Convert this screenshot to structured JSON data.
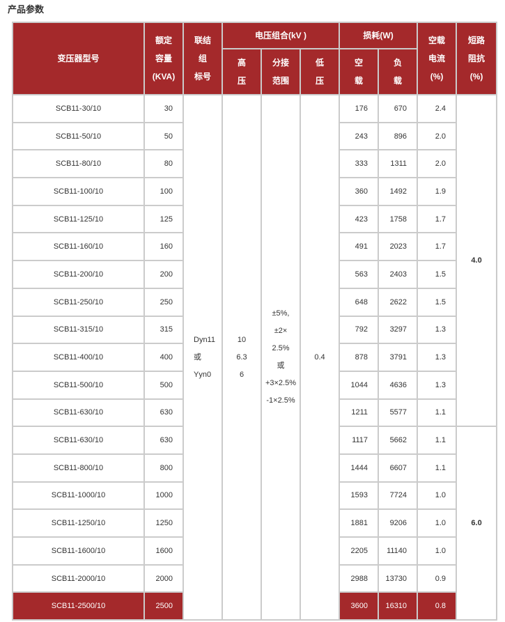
{
  "page_title": "产品参数",
  "colors": {
    "header_bg": "#a4292b",
    "border": "#cbcbcb",
    "highlight_bg": "#a4292b"
  },
  "headers": {
    "model": "变压器型号",
    "capacity": [
      "额定",
      "容量",
      "(KVA)"
    ],
    "wiring": [
      "联结",
      "组",
      "标号"
    ],
    "voltage": "电压组合(kV )",
    "hv": [
      "高",
      "压"
    ],
    "tap": [
      "分接",
      "范围"
    ],
    "lv": [
      "低",
      "压"
    ],
    "loss": "损耗(W)",
    "noload": [
      "空",
      "载"
    ],
    "load": [
      "负",
      "载"
    ],
    "current": [
      "空载",
      "电流",
      "(%)"
    ],
    "impedance": [
      "短路",
      "阻抗",
      "(%)"
    ]
  },
  "merged": {
    "wiring": [
      "Dyn11",
      "或",
      "Yyn0"
    ],
    "hv": [
      "10",
      "6.3",
      "6"
    ],
    "tap": [
      "±5%,",
      "±2×",
      "2.5%",
      "或",
      "+3×2.5%",
      "-1×2.5%"
    ],
    "lv": "0.4",
    "impedance_a": "4.0",
    "impedance_b": "6.0"
  },
  "rows": [
    {
      "model": "SCB11-30/10",
      "capacity": "30",
      "noload": "176",
      "load": "670",
      "current": "2.4"
    },
    {
      "model": "SCB11-50/10",
      "capacity": "50",
      "noload": "243",
      "load": "896",
      "current": "2.0"
    },
    {
      "model": "SCB11-80/10",
      "capacity": "80",
      "noload": "333",
      "load": "1311",
      "current": "2.0"
    },
    {
      "model": "SCB11-100/10",
      "capacity": "100",
      "noload": "360",
      "load": "1492",
      "current": "1.9"
    },
    {
      "model": "SCB11-125/10",
      "capacity": "125",
      "noload": "423",
      "load": "1758",
      "current": "1.7"
    },
    {
      "model": "SCB11-160/10",
      "capacity": "160",
      "noload": "491",
      "load": "2023",
      "current": "1.7"
    },
    {
      "model": "SCB11-200/10",
      "capacity": "200",
      "noload": "563",
      "load": "2403",
      "current": "1.5"
    },
    {
      "model": "SCB11-250/10",
      "capacity": "250",
      "noload": "648",
      "load": "2622",
      "current": "1.5"
    },
    {
      "model": "SCB11-315/10",
      "capacity": "315",
      "noload": "792",
      "load": "3297",
      "current": "1.3"
    },
    {
      "model": "SCB11-400/10",
      "capacity": "400",
      "noload": "878",
      "load": "3791",
      "current": "1.3"
    },
    {
      "model": "SCB11-500/10",
      "capacity": "500",
      "noload": "1044",
      "load": "4636",
      "current": "1.3"
    },
    {
      "model": "SCB11-630/10",
      "capacity": "630",
      "noload": "1211",
      "load": "5577",
      "current": "1.1"
    },
    {
      "model": "SCB11-630/10",
      "capacity": "630",
      "noload": "1117",
      "load": "5662",
      "current": "1.1"
    },
    {
      "model": "SCB11-800/10",
      "capacity": "800",
      "noload": "1444",
      "load": "6607",
      "current": "1.1"
    },
    {
      "model": "SCB11-1000/10",
      "capacity": "1000",
      "noload": "1593",
      "load": "7724",
      "current": "1.0"
    },
    {
      "model": "SCB11-1250/10",
      "capacity": "1250",
      "noload": "1881",
      "load": "9206",
      "current": "1.0"
    },
    {
      "model": "SCB11-1600/10",
      "capacity": "1600",
      "noload": "2205",
      "load": "11140",
      "current": "1.0"
    },
    {
      "model": "SCB11-2000/10",
      "capacity": "2000",
      "noload": "2988",
      "load": "13730",
      "current": "0.9"
    },
    {
      "model": "SCB11-2500/10",
      "capacity": "2500",
      "noload": "3600",
      "load": "16310",
      "current": "0.8",
      "highlight": true
    }
  ]
}
